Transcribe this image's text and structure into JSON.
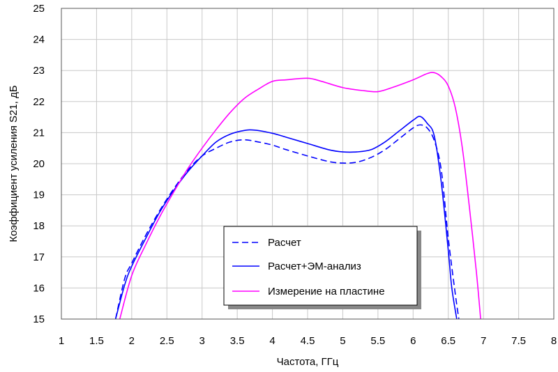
{
  "chart_data": {
    "type": "line",
    "xlabel": "Частота, ГГц",
    "ylabel": "Коэффициент усиления S21, дБ",
    "xlim": [
      1,
      8
    ],
    "ylim": [
      15,
      25
    ],
    "x_ticks": [
      1,
      1.5,
      2,
      2.5,
      3,
      3.5,
      4,
      4.5,
      5,
      5.5,
      6,
      6.5,
      7,
      7.5,
      8
    ],
    "x_tick_labels": [
      "1",
      "1.5",
      "2",
      "2.5",
      "3",
      "3.5",
      "4",
      "4.5",
      "5",
      "5.5",
      "6",
      "6.5",
      "7",
      "7.5",
      "8"
    ],
    "y_ticks": [
      15,
      16,
      17,
      18,
      19,
      20,
      21,
      22,
      23,
      24,
      25
    ],
    "y_tick_labels": [
      "15",
      "16",
      "17",
      "18",
      "19",
      "20",
      "21",
      "22",
      "23",
      "24",
      "25"
    ],
    "grid": true,
    "legend_position": "lower-center",
    "series": [
      {
        "name": "Расчет",
        "color": "#0000ff",
        "style": "dashed",
        "points": [
          [
            1.77,
            15.0
          ],
          [
            1.9,
            16.3
          ],
          [
            2.0,
            16.8
          ],
          [
            2.2,
            17.7
          ],
          [
            2.4,
            18.5
          ],
          [
            2.6,
            19.2
          ],
          [
            2.8,
            19.8
          ],
          [
            3.0,
            20.25
          ],
          [
            3.2,
            20.5
          ],
          [
            3.4,
            20.7
          ],
          [
            3.6,
            20.77
          ],
          [
            3.8,
            20.7
          ],
          [
            4.0,
            20.6
          ],
          [
            4.2,
            20.45
          ],
          [
            4.5,
            20.25
          ],
          [
            4.8,
            20.07
          ],
          [
            5.0,
            20.02
          ],
          [
            5.2,
            20.05
          ],
          [
            5.4,
            20.2
          ],
          [
            5.6,
            20.45
          ],
          [
            5.8,
            20.8
          ],
          [
            6.0,
            21.15
          ],
          [
            6.1,
            21.25
          ],
          [
            6.2,
            21.15
          ],
          [
            6.3,
            20.75
          ],
          [
            6.4,
            19.8
          ],
          [
            6.5,
            17.6
          ],
          [
            6.6,
            15.8
          ],
          [
            6.65,
            15.0
          ]
        ]
      },
      {
        "name": "Расчет+ЭМ-анализ",
        "color": "#0000ff",
        "style": "solid",
        "points": [
          [
            1.77,
            15.0
          ],
          [
            1.9,
            16.1
          ],
          [
            2.0,
            16.7
          ],
          [
            2.2,
            17.6
          ],
          [
            2.4,
            18.45
          ],
          [
            2.6,
            19.15
          ],
          [
            2.8,
            19.75
          ],
          [
            3.0,
            20.25
          ],
          [
            3.2,
            20.7
          ],
          [
            3.4,
            20.95
          ],
          [
            3.6,
            21.07
          ],
          [
            3.75,
            21.08
          ],
          [
            4.0,
            20.98
          ],
          [
            4.2,
            20.85
          ],
          [
            4.5,
            20.65
          ],
          [
            4.8,
            20.45
          ],
          [
            5.0,
            20.38
          ],
          [
            5.2,
            20.38
          ],
          [
            5.4,
            20.45
          ],
          [
            5.6,
            20.7
          ],
          [
            5.8,
            21.05
          ],
          [
            6.0,
            21.4
          ],
          [
            6.1,
            21.52
          ],
          [
            6.2,
            21.3
          ],
          [
            6.3,
            20.9
          ],
          [
            6.4,
            19.4
          ],
          [
            6.5,
            17.2
          ],
          [
            6.55,
            16.0
          ],
          [
            6.62,
            15.0
          ]
        ]
      },
      {
        "name": "Измерение на пластине",
        "color": "#ff00ff",
        "style": "solid",
        "points": [
          [
            1.83,
            15.0
          ],
          [
            2.0,
            16.4
          ],
          [
            2.2,
            17.4
          ],
          [
            2.4,
            18.3
          ],
          [
            2.6,
            19.1
          ],
          [
            2.8,
            19.85
          ],
          [
            3.0,
            20.5
          ],
          [
            3.2,
            21.1
          ],
          [
            3.4,
            21.65
          ],
          [
            3.6,
            22.1
          ],
          [
            3.8,
            22.4
          ],
          [
            4.0,
            22.65
          ],
          [
            4.2,
            22.7
          ],
          [
            4.5,
            22.75
          ],
          [
            4.7,
            22.65
          ],
          [
            5.0,
            22.45
          ],
          [
            5.3,
            22.35
          ],
          [
            5.5,
            22.32
          ],
          [
            5.7,
            22.45
          ],
          [
            6.0,
            22.7
          ],
          [
            6.2,
            22.9
          ],
          [
            6.3,
            22.93
          ],
          [
            6.4,
            22.8
          ],
          [
            6.5,
            22.5
          ],
          [
            6.6,
            21.8
          ],
          [
            6.7,
            20.5
          ],
          [
            6.8,
            18.6
          ],
          [
            6.9,
            16.5
          ],
          [
            6.96,
            15.0
          ]
        ]
      }
    ]
  }
}
